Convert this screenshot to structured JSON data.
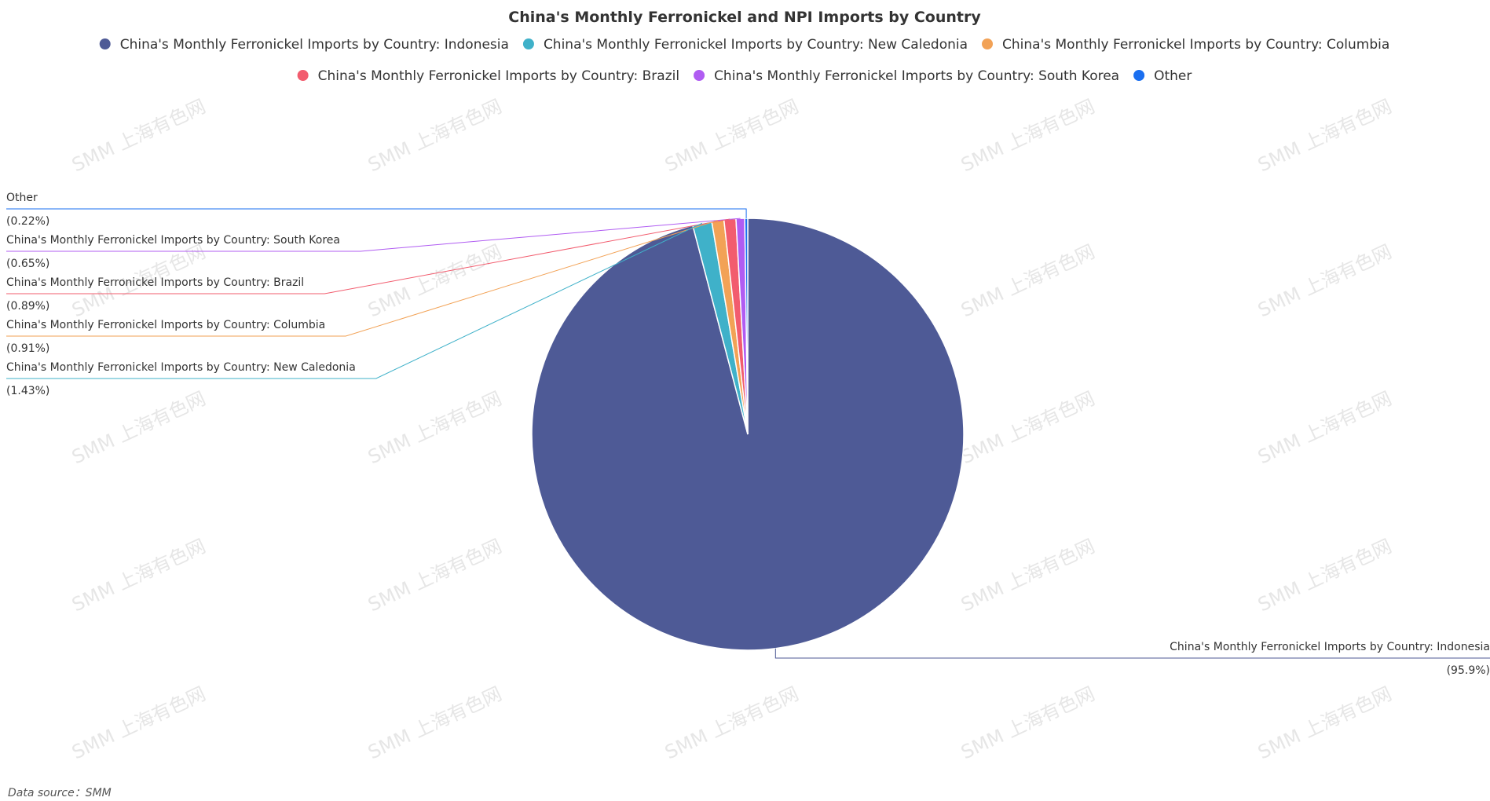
{
  "chart_data": {
    "type": "pie",
    "title": "China's Monthly Ferronickel and NPI Imports by Country",
    "legend_position": "top",
    "slices": [
      {
        "name": "China's Monthly Ferronickel Imports by Country: Indonesia",
        "value": 95.9,
        "label": "(95.9%)",
        "color": "#4e5a96"
      },
      {
        "name": "China's Monthly Ferronickel Imports by Country: New Caledonia",
        "value": 1.43,
        "label": "(1.43%)",
        "color": "#3fb1c9"
      },
      {
        "name": "China's Monthly Ferronickel Imports by Country: Columbia",
        "value": 0.91,
        "label": "(0.91%)",
        "color": "#f2a256"
      },
      {
        "name": "China's Monthly Ferronickel Imports by Country: Brazil",
        "value": 0.89,
        "label": "(0.89%)",
        "color": "#f25c6e"
      },
      {
        "name": "China's Monthly Ferronickel Imports by Country: South Korea",
        "value": 0.65,
        "label": "(0.65%)",
        "color": "#b05cf2"
      },
      {
        "name": "Other",
        "value": 0.22,
        "label": "(0.22%)",
        "color": "#1a6ff0"
      }
    ]
  },
  "watermark": "SMM 上海有色网",
  "source": "Data source：SMM"
}
